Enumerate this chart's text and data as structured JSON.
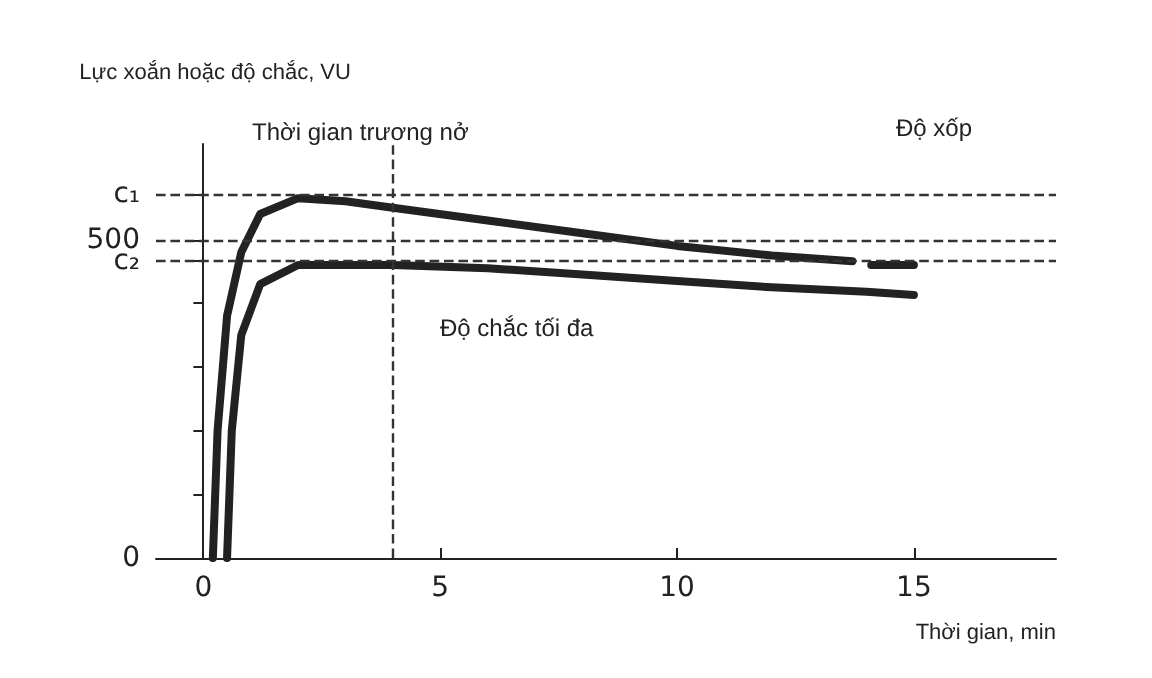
{
  "chart_data": {
    "type": "line",
    "xlabel": "Thời gian, min",
    "ylabel": "Lực xoắn hoặc độ chắc, VU",
    "x": [
      0.2,
      0.3,
      0.5,
      0.8,
      1.2,
      2,
      3,
      4,
      6,
      8,
      10,
      12,
      13.7,
      13.9,
      14.1,
      15
    ],
    "series": [
      {
        "color": "#222222",
        "values": [
          0,
          200,
          380,
          480,
          540,
          565,
          560,
          550,
          530,
          510,
          490,
          475,
          466,
          null,
          460,
          460
        ]
      },
      {
        "color": "#222222",
        "x": [
          0.5,
          0.6,
          0.8,
          1.2,
          2,
          4,
          6,
          8,
          10,
          12,
          14,
          15
        ],
        "values": [
          0,
          200,
          350,
          430,
          460,
          460,
          455,
          445,
          435,
          425,
          418,
          413
        ]
      }
    ],
    "xlim": [
      -1,
      18
    ],
    "xticks": [
      0,
      5,
      10,
      15
    ],
    "ylim": [
      0,
      650
    ],
    "yticks": [
      0,
      {
        "value": 100,
        "label": null
      },
      {
        "value": 200,
        "label": null
      },
      {
        "value": 300,
        "label": null
      },
      {
        "value": 400,
        "label": null
      },
      {
        "value": 466,
        "label": "c₂"
      },
      500,
      {
        "value": 571,
        "label": "c₁"
      }
    ],
    "ref_lines": [
      {
        "axis": "y",
        "value": 571,
        "line_style": "dashed"
      },
      {
        "axis": "y",
        "value": 500,
        "line_style": "dashed"
      },
      {
        "axis": "y",
        "value": 466,
        "line_style": "dashed"
      },
      {
        "axis": "x",
        "value": 4,
        "line_style": "dashed"
      }
    ],
    "annotations": [
      "Thời gian trương nở",
      "Độ xốp",
      "Độ chắc tối đa"
    ],
    "line_style": "solid",
    "grid": false
  }
}
